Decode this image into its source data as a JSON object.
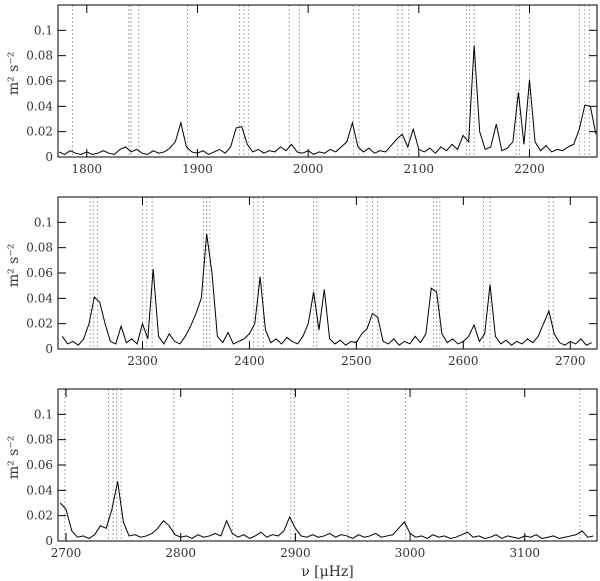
{
  "chart_data": [
    {
      "type": "line",
      "y_label": "m² s⁻²",
      "color": "#000000",
      "vline_color": "#999999",
      "xlim": [
        1774,
        2261
      ],
      "ylim": [
        0,
        0.12
      ],
      "xticks": [
        1800,
        1900,
        2000,
        2100,
        2200
      ],
      "yticks": [
        0,
        0.02,
        0.04,
        0.06,
        0.08,
        0.1
      ],
      "vlines": [
        1787,
        1838,
        1840,
        1847,
        1891,
        1938,
        1942,
        1946,
        1983,
        1992,
        2041,
        2046,
        2081,
        2085,
        2091,
        2143,
        2146,
        2150,
        2188,
        2191,
        2200,
        2245,
        2250,
        2254
      ],
      "x": [
        1775,
        1780,
        1785,
        1790,
        1795,
        1800,
        1805,
        1810,
        1815,
        1820,
        1825,
        1830,
        1835,
        1840,
        1845,
        1850,
        1855,
        1860,
        1865,
        1870,
        1875,
        1880,
        1885,
        1890,
        1895,
        1900,
        1905,
        1910,
        1915,
        1920,
        1925,
        1930,
        1935,
        1940,
        1945,
        1950,
        1955,
        1960,
        1965,
        1970,
        1975,
        1980,
        1985,
        1990,
        1995,
        2000,
        2005,
        2010,
        2015,
        2020,
        2025,
        2030,
        2035,
        2040,
        2045,
        2050,
        2055,
        2060,
        2065,
        2070,
        2075,
        2080,
        2085,
        2090,
        2095,
        2100,
        2105,
        2110,
        2115,
        2120,
        2125,
        2130,
        2135,
        2140,
        2145,
        2150,
        2155,
        2160,
        2165,
        2170,
        2175,
        2180,
        2185,
        2190,
        2195,
        2200,
        2205,
        2210,
        2215,
        2220,
        2225,
        2230,
        2235,
        2240,
        2245,
        2250,
        2255,
        2260
      ],
      "values": [
        0.004,
        0.002,
        0.005,
        0.003,
        0.002,
        0.004,
        0.002,
        0.003,
        0.005,
        0.003,
        0.002,
        0.006,
        0.008,
        0.004,
        0.006,
        0.003,
        0.002,
        0.005,
        0.003,
        0.004,
        0.007,
        0.012,
        0.027,
        0.008,
        0.004,
        0.003,
        0.005,
        0.002,
        0.004,
        0.006,
        0.003,
        0.008,
        0.023,
        0.024,
        0.01,
        0.004,
        0.006,
        0.003,
        0.005,
        0.004,
        0.008,
        0.005,
        0.01,
        0.004,
        0.003,
        0.005,
        0.002,
        0.004,
        0.003,
        0.006,
        0.004,
        0.008,
        0.012,
        0.027,
        0.008,
        0.004,
        0.007,
        0.003,
        0.005,
        0.004,
        0.009,
        0.014,
        0.018,
        0.008,
        0.022,
        0.006,
        0.004,
        0.007,
        0.003,
        0.008,
        0.005,
        0.01,
        0.006,
        0.017,
        0.012,
        0.088,
        0.02,
        0.006,
        0.008,
        0.026,
        0.005,
        0.007,
        0.012,
        0.051,
        0.01,
        0.061,
        0.012,
        0.005,
        0.009,
        0.004,
        0.006,
        0.005,
        0.008,
        0.01,
        0.022,
        0.041,
        0.04,
        0.018
      ]
    },
    {
      "type": "line",
      "y_label": "m² s⁻²",
      "color": "#000000",
      "vline_color": "#999999",
      "xlim": [
        2221,
        2725
      ],
      "ylim": [
        0,
        0.12
      ],
      "xticks": [
        2300,
        2400,
        2500,
        2600,
        2700
      ],
      "yticks": [
        0,
        0.02,
        0.04,
        0.06,
        0.08,
        0.1
      ],
      "vlines": [
        2251,
        2254,
        2258,
        2300,
        2304,
        2309,
        2357,
        2360,
        2363,
        2404,
        2408,
        2413,
        2460,
        2463,
        2510,
        2515,
        2520,
        2572,
        2575,
        2578,
        2619,
        2625,
        2680,
        2684
      ],
      "x": [
        2225,
        2230,
        2235,
        2240,
        2245,
        2250,
        2255,
        2260,
        2265,
        2270,
        2275,
        2280,
        2285,
        2290,
        2295,
        2300,
        2305,
        2310,
        2315,
        2320,
        2325,
        2330,
        2335,
        2340,
        2345,
        2350,
        2355,
        2360,
        2365,
        2370,
        2375,
        2380,
        2385,
        2390,
        2395,
        2400,
        2405,
        2410,
        2415,
        2420,
        2425,
        2430,
        2435,
        2440,
        2445,
        2450,
        2455,
        2460,
        2465,
        2470,
        2475,
        2480,
        2485,
        2490,
        2495,
        2500,
        2505,
        2510,
        2515,
        2520,
        2525,
        2530,
        2535,
        2540,
        2545,
        2550,
        2555,
        2560,
        2565,
        2570,
        2575,
        2580,
        2585,
        2590,
        2595,
        2600,
        2605,
        2610,
        2615,
        2620,
        2625,
        2630,
        2635,
        2640,
        2645,
        2650,
        2655,
        2660,
        2665,
        2670,
        2675,
        2680,
        2685,
        2690,
        2695,
        2700,
        2705,
        2710,
        2715,
        2720
      ],
      "values": [
        0.01,
        0.004,
        0.006,
        0.003,
        0.008,
        0.02,
        0.041,
        0.037,
        0.02,
        0.006,
        0.004,
        0.018,
        0.005,
        0.008,
        0.004,
        0.02,
        0.008,
        0.063,
        0.01,
        0.004,
        0.012,
        0.006,
        0.004,
        0.01,
        0.018,
        0.028,
        0.04,
        0.091,
        0.06,
        0.01,
        0.005,
        0.013,
        0.004,
        0.006,
        0.008,
        0.012,
        0.02,
        0.057,
        0.015,
        0.005,
        0.008,
        0.004,
        0.009,
        0.006,
        0.004,
        0.01,
        0.02,
        0.045,
        0.015,
        0.047,
        0.008,
        0.004,
        0.007,
        0.003,
        0.006,
        0.005,
        0.012,
        0.016,
        0.028,
        0.025,
        0.006,
        0.004,
        0.008,
        0.003,
        0.006,
        0.004,
        0.01,
        0.005,
        0.012,
        0.048,
        0.045,
        0.012,
        0.005,
        0.008,
        0.004,
        0.006,
        0.01,
        0.019,
        0.006,
        0.012,
        0.051,
        0.01,
        0.004,
        0.007,
        0.003,
        0.006,
        0.004,
        0.008,
        0.005,
        0.01,
        0.02,
        0.03,
        0.012,
        0.005,
        0.003,
        0.006,
        0.004,
        0.008,
        0.003,
        0.005
      ]
    },
    {
      "type": "line",
      "y_label": "m² s⁻²",
      "x_label": "ν [μHz]",
      "color": "#000000",
      "vline_color": "#999999",
      "xlim": [
        2693,
        3163
      ],
      "ylim": [
        0,
        0.12
      ],
      "xticks": [
        2700,
        2800,
        2900,
        3000,
        3100
      ],
      "yticks": [
        0,
        0.02,
        0.04,
        0.06,
        0.08,
        0.1
      ],
      "vlines": [
        2699,
        2737,
        2741,
        2744,
        2748,
        2794,
        2845,
        2896,
        2899,
        2946,
        2996,
        3049,
        3148
      ],
      "x": [
        2695,
        2700,
        2705,
        2710,
        2715,
        2720,
        2725,
        2730,
        2735,
        2740,
        2745,
        2750,
        2755,
        2760,
        2765,
        2770,
        2775,
        2780,
        2785,
        2790,
        2795,
        2800,
        2805,
        2810,
        2815,
        2820,
        2825,
        2830,
        2835,
        2840,
        2845,
        2850,
        2855,
        2860,
        2865,
        2870,
        2875,
        2880,
        2885,
        2890,
        2895,
        2900,
        2905,
        2910,
        2915,
        2920,
        2925,
        2930,
        2935,
        2940,
        2945,
        2950,
        2955,
        2960,
        2965,
        2970,
        2975,
        2980,
        2985,
        2990,
        2995,
        3000,
        3005,
        3010,
        3015,
        3020,
        3025,
        3030,
        3035,
        3040,
        3045,
        3050,
        3055,
        3060,
        3065,
        3070,
        3075,
        3080,
        3085,
        3090,
        3095,
        3100,
        3105,
        3110,
        3115,
        3120,
        3125,
        3130,
        3135,
        3140,
        3145,
        3150,
        3155,
        3160
      ],
      "values": [
        0.03,
        0.025,
        0.008,
        0.003,
        0.004,
        0.002,
        0.005,
        0.012,
        0.01,
        0.025,
        0.047,
        0.015,
        0.004,
        0.005,
        0.003,
        0.004,
        0.006,
        0.01,
        0.016,
        0.012,
        0.005,
        0.003,
        0.004,
        0.002,
        0.005,
        0.003,
        0.004,
        0.006,
        0.004,
        0.016,
        0.006,
        0.003,
        0.005,
        0.002,
        0.004,
        0.007,
        0.003,
        0.005,
        0.004,
        0.008,
        0.019,
        0.01,
        0.004,
        0.003,
        0.005,
        0.003,
        0.004,
        0.006,
        0.003,
        0.005,
        0.004,
        0.002,
        0.005,
        0.003,
        0.004,
        0.006,
        0.003,
        0.004,
        0.005,
        0.01,
        0.015,
        0.006,
        0.003,
        0.004,
        0.002,
        0.005,
        0.003,
        0.004,
        0.002,
        0.003,
        0.005,
        0.007,
        0.003,
        0.004,
        0.002,
        0.003,
        0.005,
        0.002,
        0.004,
        0.003,
        0.002,
        0.004,
        0.003,
        0.005,
        0.002,
        0.003,
        0.004,
        0.002,
        0.003,
        0.004,
        0.005,
        0.008,
        0.003,
        0.004
      ]
    }
  ]
}
